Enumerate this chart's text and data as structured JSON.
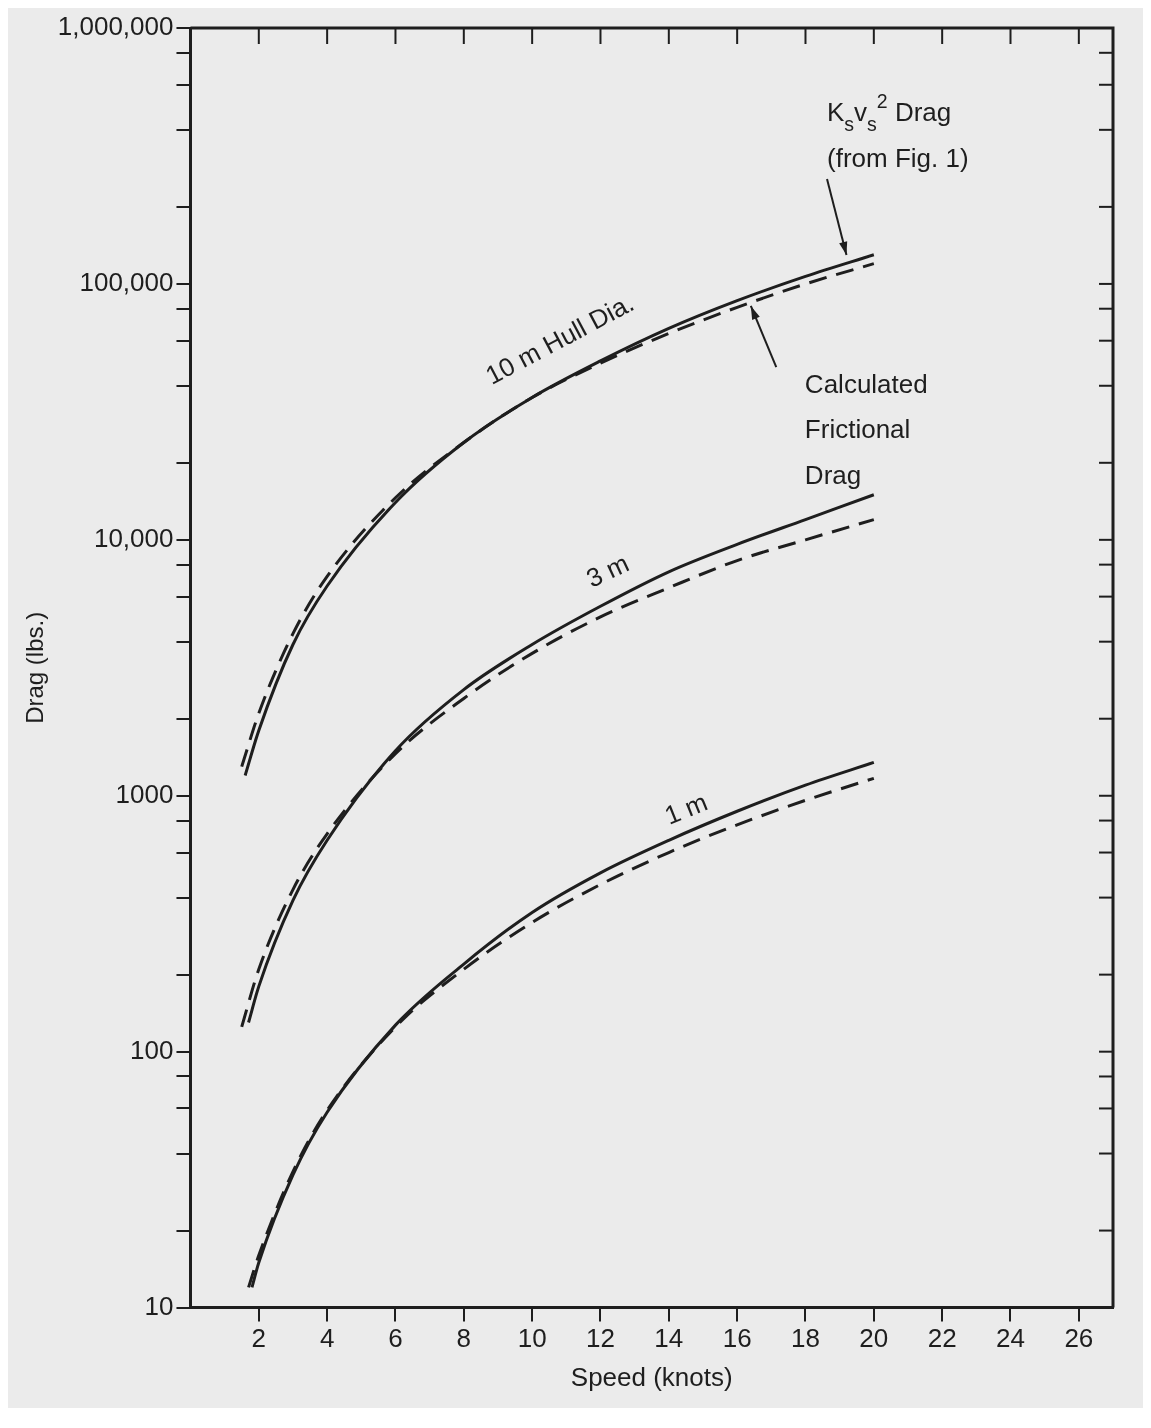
{
  "chart_data": {
    "type": "line",
    "xlabel": "Speed (knots)",
    "ylabel": "Drag (lbs.)",
    "xlim": [
      0,
      27
    ],
    "xticks": [
      2,
      4,
      6,
      8,
      10,
      12,
      14,
      16,
      18,
      20,
      22,
      24,
      26
    ],
    "ylim": [
      10,
      1000000
    ],
    "log": "y",
    "yticks": [
      {
        "value": 10,
        "label": "10"
      },
      {
        "value": 20,
        "label": null
      },
      {
        "value": 40,
        "label": null
      },
      {
        "value": 60,
        "label": null
      },
      {
        "value": 80,
        "label": null
      },
      {
        "value": 100,
        "label": "100"
      },
      {
        "value": 200,
        "label": null
      },
      {
        "value": 400,
        "label": null
      },
      {
        "value": 600,
        "label": null
      },
      {
        "value": 800,
        "label": null
      },
      {
        "value": 1000,
        "label": "1000"
      },
      {
        "value": 2000,
        "label": null
      },
      {
        "value": 4000,
        "label": null
      },
      {
        "value": 6000,
        "label": null
      },
      {
        "value": 8000,
        "label": null
      },
      {
        "value": 10000,
        "label": "10,000"
      },
      {
        "value": 20000,
        "label": null
      },
      {
        "value": 40000,
        "label": null
      },
      {
        "value": 60000,
        "label": null
      },
      {
        "value": 80000,
        "label": null
      },
      {
        "value": 100000,
        "label": "100,000"
      },
      {
        "value": 200000,
        "label": null
      },
      {
        "value": 400000,
        "label": null
      },
      {
        "value": 600000,
        "label": null
      },
      {
        "value": 800000,
        "label": null
      },
      {
        "value": 1000000,
        "label": "1,000,000"
      }
    ],
    "marker": "none",
    "legend": false,
    "series": [
      {
        "color": "#1e1e1e",
        "line_style": "solid",
        "x": [
          1.6,
          2,
          3,
          4,
          6,
          8,
          10,
          12,
          14,
          16,
          18,
          20
        ],
        "values": [
          1200,
          1800,
          3900,
          6600,
          14000,
          24000,
          36000,
          50000,
          67000,
          86000,
          107000,
          130000
        ]
      },
      {
        "color": "#1e1e1e",
        "line_style": "dashed",
        "x": [
          1.5,
          2,
          3,
          4,
          6,
          8,
          10,
          12,
          14,
          16,
          18,
          20
        ],
        "values": [
          1300,
          2100,
          4300,
          7200,
          14600,
          24000,
          36000,
          49000,
          64000,
          81000,
          100000,
          120000
        ]
      },
      {
        "color": "#1e1e1e",
        "line_style": "solid",
        "x": [
          1.7,
          2,
          3,
          4,
          6,
          8,
          10,
          12,
          14,
          16,
          18,
          20
        ],
        "values": [
          130,
          180,
          390,
          670,
          1500,
          2600,
          3900,
          5500,
          7500,
          9600,
          12000,
          15000
        ]
      },
      {
        "color": "#1e1e1e",
        "line_style": "dashed",
        "x": [
          1.5,
          2,
          3,
          4,
          6,
          8,
          10,
          12,
          14,
          16,
          18,
          20
        ],
        "values": [
          125,
          210,
          430,
          710,
          1460,
          2400,
          3600,
          5000,
          6500,
          8300,
          10000,
          12000
        ]
      },
      {
        "color": "#1e1e1e",
        "line_style": "solid",
        "x": [
          1.8,
          2,
          3,
          4,
          6,
          8,
          10,
          12,
          14,
          16,
          18,
          20
        ],
        "values": [
          12,
          15,
          33,
          58,
          127,
          220,
          350,
          500,
          670,
          870,
          1100,
          1350
        ]
      },
      {
        "color": "#1e1e1e",
        "line_style": "dashed",
        "x": [
          1.7,
          2,
          3,
          4,
          6,
          8,
          10,
          12,
          14,
          16,
          18,
          20
        ],
        "values": [
          12,
          16,
          34,
          59,
          125,
          210,
          320,
          450,
          600,
          770,
          960,
          1170
        ]
      }
    ],
    "annotations": [
      "10 m Hull Dia.",
      "3 m",
      "1 m",
      {
        "text": "K$_{s}$v$_{s}$$^{2}$ Drag (from Fig. 1)",
        "x": 19.2,
        "y": 125000
      },
      {
        "text": "Calculated Frictional Drag",
        "x": 16.4,
        "y": 85000
      }
    ]
  }
}
